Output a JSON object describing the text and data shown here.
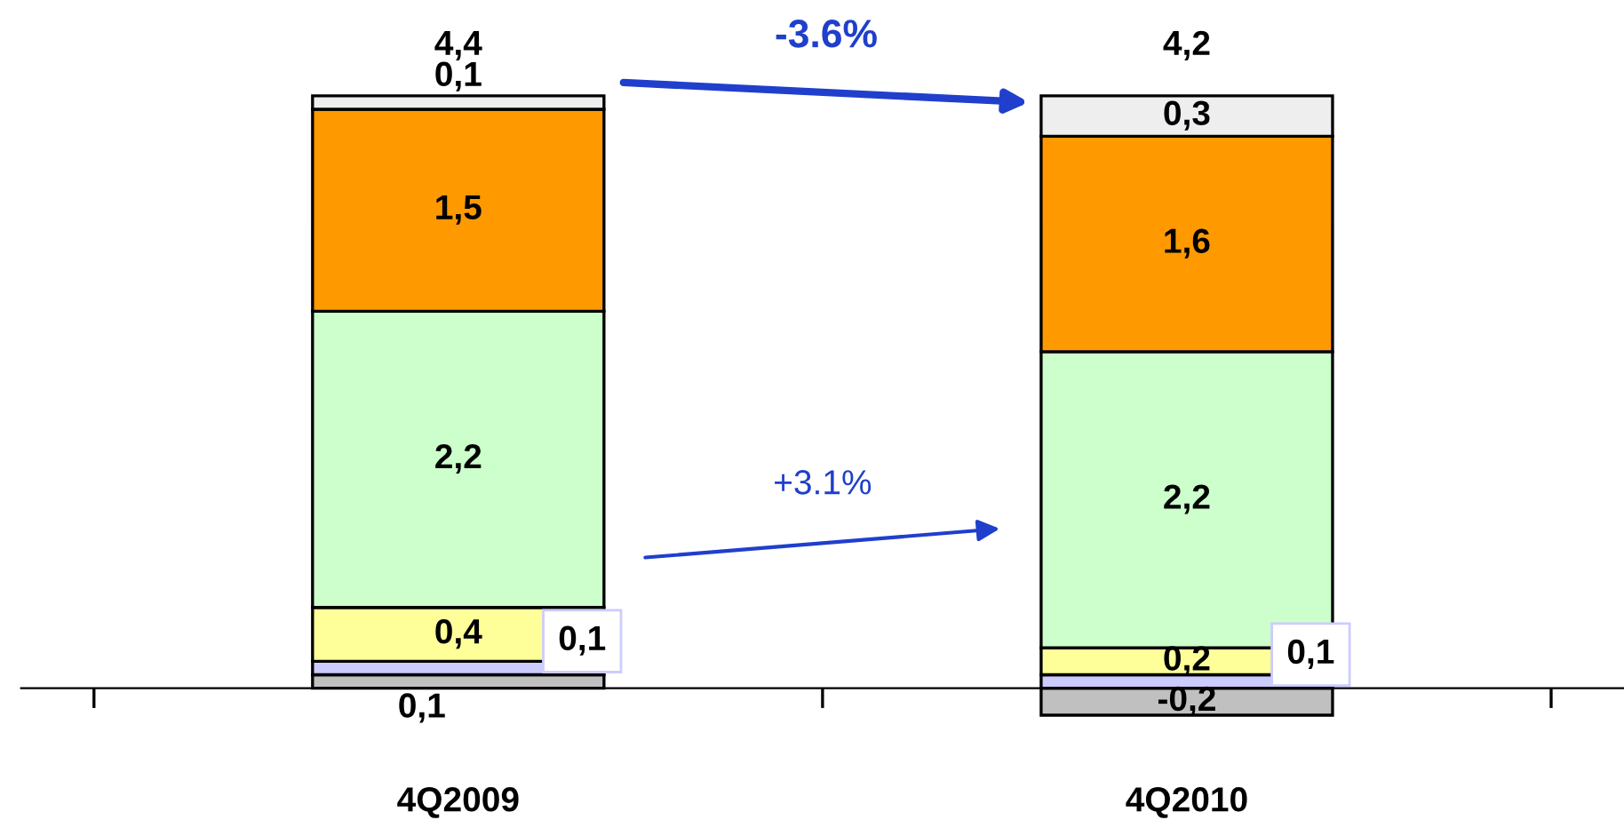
{
  "chart_data": {
    "type": "bar",
    "stacked": true,
    "data_labels": true,
    "categories": [
      "4Q2009",
      "4Q2010"
    ],
    "series": [
      {
        "color": "#c0c0c0",
        "values": [
          0.1,
          -0.2
        ],
        "value_labels": [
          "0,1",
          "-0,2"
        ]
      },
      {
        "color": "#ccccff",
        "values": [
          0.1,
          0.1
        ],
        "value_labels": [
          "0,1",
          "0,1"
        ]
      },
      {
        "color": "#ffff99",
        "values": [
          0.4,
          0.2
        ],
        "value_labels": [
          "0,4",
          "0,2"
        ]
      },
      {
        "color": "#ccffcc",
        "values": [
          2.2,
          2.2
        ],
        "value_labels": [
          "2,2",
          "2,2"
        ]
      },
      {
        "color": "#ff9900",
        "values": [
          1.5,
          1.6
        ],
        "value_labels": [
          "1,5",
          "1,6"
        ]
      },
      {
        "color": "#eeeeee",
        "values": [
          0.1,
          0.3
        ],
        "value_labels": [
          "0,1",
          "0,3"
        ]
      }
    ],
    "totals": [
      "4,4",
      "4,2"
    ],
    "annotations": [
      "-3.6%",
      "+3.1%"
    ]
  }
}
